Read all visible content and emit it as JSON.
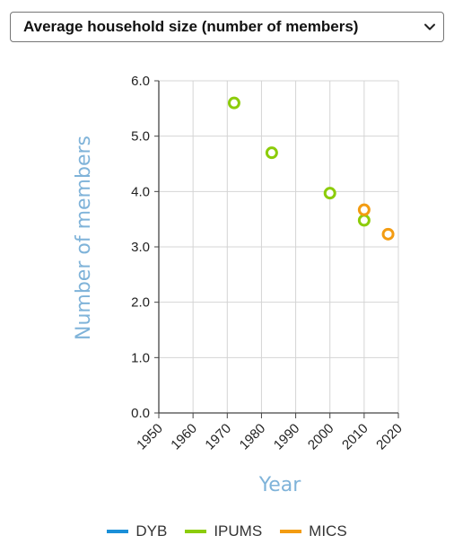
{
  "selector": {
    "value": "Average household size (number of members)",
    "icon": "chevron-down-icon"
  },
  "chart_data": {
    "type": "scatter",
    "xlabel": "Year",
    "ylabel": "Number of members",
    "xlim": [
      1950,
      2020
    ],
    "ylim": [
      0,
      6
    ],
    "x_ticks": [
      "1950",
      "1960",
      "1970",
      "1980",
      "1990",
      "2000",
      "2010",
      "2020"
    ],
    "y_ticks": [
      "0.0",
      "1.0",
      "2.0",
      "3.0",
      "4.0",
      "5.0",
      "6.0"
    ],
    "grid": true,
    "legend_position": "bottom",
    "series": [
      {
        "name": "DYB",
        "color": "#1a8fd8",
        "points": []
      },
      {
        "name": "IPUMS",
        "color": "#8ccc0a",
        "points": [
          [
            1972,
            5.6
          ],
          [
            1983,
            4.7
          ],
          [
            2000,
            3.97
          ],
          [
            2010,
            3.48
          ]
        ]
      },
      {
        "name": "MICS",
        "color": "#f39c12",
        "points": [
          [
            2010,
            3.67
          ],
          [
            2017,
            3.23
          ]
        ]
      }
    ]
  },
  "legend": [
    {
      "label": "DYB",
      "color": "#1a8fd8"
    },
    {
      "label": "IPUMS",
      "color": "#8ccc0a"
    },
    {
      "label": "MICS",
      "color": "#f39c12"
    }
  ]
}
